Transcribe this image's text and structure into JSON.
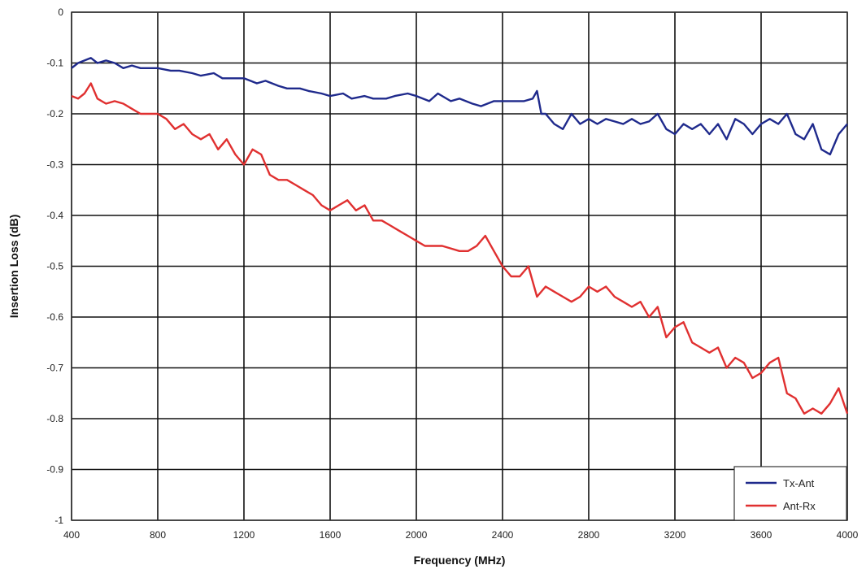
{
  "chart_data": {
    "type": "line",
    "title": "",
    "xlabel": "Frequency (MHz)",
    "ylabel": "Insertion Loss (dB)",
    "xlim": [
      400,
      4000
    ],
    "ylim": [
      -1,
      0
    ],
    "x_ticks": [
      400,
      800,
      1200,
      1600,
      2000,
      2400,
      2800,
      3200,
      3600,
      4000
    ],
    "y_ticks": [
      0,
      -0.1,
      -0.2,
      -0.3,
      -0.4,
      -0.5,
      -0.6,
      -0.7,
      -0.8,
      -0.9,
      -1
    ],
    "grid": true,
    "legend_position": "bottom-right",
    "series": [
      {
        "name": "Tx-Ant",
        "color": "#1f2a8c",
        "x": [
          400,
          430,
          460,
          490,
          520,
          560,
          600,
          640,
          680,
          720,
          760,
          800,
          860,
          900,
          960,
          1000,
          1060,
          1100,
          1160,
          1200,
          1260,
          1300,
          1360,
          1400,
          1460,
          1500,
          1560,
          1600,
          1660,
          1700,
          1760,
          1800,
          1860,
          1900,
          1960,
          2000,
          2060,
          2100,
          2160,
          2200,
          2260,
          2300,
          2360,
          2400,
          2460,
          2500,
          2540,
          2560,
          2580,
          2600,
          2640,
          2680,
          2720,
          2760,
          2800,
          2840,
          2880,
          2920,
          2960,
          3000,
          3040,
          3080,
          3120,
          3160,
          3200,
          3240,
          3280,
          3320,
          3360,
          3400,
          3440,
          3480,
          3520,
          3560,
          3600,
          3640,
          3680,
          3720,
          3760,
          3800,
          3840,
          3880,
          3920,
          3960,
          4000
        ],
        "y": [
          -0.11,
          -0.1,
          -0.095,
          -0.09,
          -0.1,
          -0.095,
          -0.1,
          -0.11,
          -0.105,
          -0.11,
          -0.11,
          -0.11,
          -0.115,
          -0.115,
          -0.12,
          -0.125,
          -0.12,
          -0.13,
          -0.13,
          -0.13,
          -0.14,
          -0.135,
          -0.145,
          -0.15,
          -0.15,
          -0.155,
          -0.16,
          -0.165,
          -0.16,
          -0.17,
          -0.165,
          -0.17,
          -0.17,
          -0.165,
          -0.16,
          -0.165,
          -0.175,
          -0.16,
          -0.175,
          -0.17,
          -0.18,
          -0.185,
          -0.175,
          -0.175,
          -0.175,
          -0.175,
          -0.17,
          -0.155,
          -0.2,
          -0.2,
          -0.22,
          -0.23,
          -0.2,
          -0.22,
          -0.21,
          -0.22,
          -0.21,
          -0.215,
          -0.22,
          -0.21,
          -0.22,
          -0.215,
          -0.2,
          -0.23,
          -0.24,
          -0.22,
          -0.23,
          -0.22,
          -0.24,
          -0.22,
          -0.25,
          -0.21,
          -0.22,
          -0.24,
          -0.22,
          -0.21,
          -0.22,
          -0.2,
          -0.24,
          -0.25,
          -0.22,
          -0.27,
          -0.28,
          -0.24,
          -0.22
        ]
      },
      {
        "name": "Ant-Rx",
        "color": "#e03030",
        "x": [
          400,
          430,
          460,
          490,
          520,
          560,
          600,
          640,
          680,
          720,
          760,
          800,
          840,
          880,
          920,
          960,
          1000,
          1040,
          1080,
          1120,
          1160,
          1200,
          1240,
          1280,
          1320,
          1360,
          1400,
          1440,
          1480,
          1520,
          1560,
          1600,
          1640,
          1680,
          1720,
          1760,
          1800,
          1840,
          1880,
          1920,
          1960,
          2000,
          2040,
          2080,
          2120,
          2160,
          2200,
          2240,
          2280,
          2320,
          2360,
          2400,
          2440,
          2480,
          2520,
          2560,
          2600,
          2640,
          2680,
          2720,
          2760,
          2800,
          2840,
          2880,
          2920,
          2960,
          3000,
          3040,
          3080,
          3120,
          3160,
          3200,
          3240,
          3280,
          3320,
          3360,
          3400,
          3440,
          3480,
          3520,
          3560,
          3600,
          3640,
          3680,
          3720,
          3760,
          3800,
          3840,
          3880,
          3920,
          3960,
          4000
        ],
        "y": [
          -0.165,
          -0.17,
          -0.16,
          -0.14,
          -0.17,
          -0.18,
          -0.175,
          -0.18,
          -0.19,
          -0.2,
          -0.2,
          -0.2,
          -0.21,
          -0.23,
          -0.22,
          -0.24,
          -0.25,
          -0.24,
          -0.27,
          -0.25,
          -0.28,
          -0.3,
          -0.27,
          -0.28,
          -0.32,
          -0.33,
          -0.33,
          -0.34,
          -0.35,
          -0.36,
          -0.38,
          -0.39,
          -0.38,
          -0.37,
          -0.39,
          -0.38,
          -0.41,
          -0.41,
          -0.42,
          -0.43,
          -0.44,
          -0.45,
          -0.46,
          -0.46,
          -0.46,
          -0.465,
          -0.47,
          -0.47,
          -0.46,
          -0.44,
          -0.47,
          -0.5,
          -0.52,
          -0.52,
          -0.5,
          -0.56,
          -0.54,
          -0.55,
          -0.56,
          -0.57,
          -0.56,
          -0.54,
          -0.55,
          -0.54,
          -0.56,
          -0.57,
          -0.58,
          -0.57,
          -0.6,
          -0.58,
          -0.64,
          -0.62,
          -0.61,
          -0.65,
          -0.66,
          -0.67,
          -0.66,
          -0.7,
          -0.68,
          -0.69,
          -0.72,
          -0.71,
          -0.69,
          -0.68,
          -0.75,
          -0.76,
          -0.79,
          -0.78,
          -0.79,
          -0.77,
          -0.74,
          -0.79
        ]
      }
    ]
  }
}
